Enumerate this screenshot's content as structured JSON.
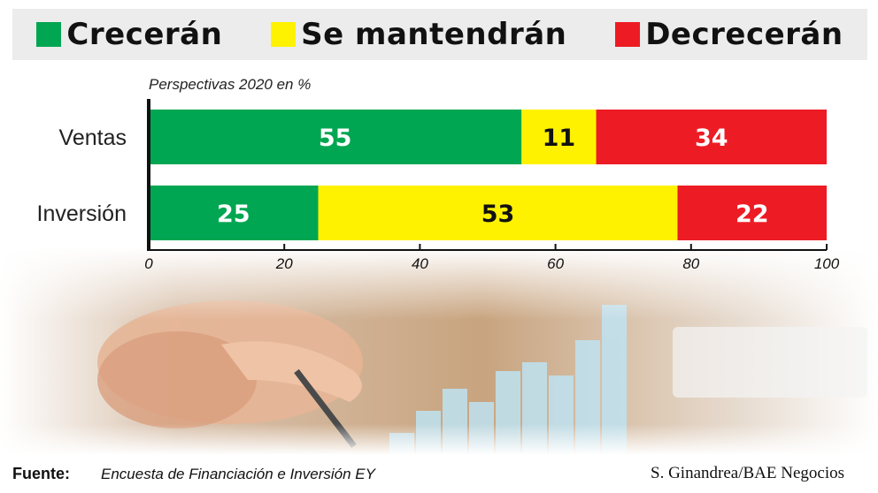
{
  "legend": [
    {
      "label": "Crecerán",
      "color": "#00a651"
    },
    {
      "label": "Se mantendrán",
      "color": "#fff200"
    },
    {
      "label": "Decrecerán",
      "color": "#ed1c24"
    }
  ],
  "subtitle": "Perspectivas 2020 en %",
  "footer": {
    "source_label": "Fuente:",
    "source_text": "Encuesta de Financiación e Inversión EY",
    "credit": "S. Ginandrea/BAE Negocios"
  },
  "chart_data": {
    "type": "bar",
    "orientation": "horizontal",
    "stacked": true,
    "categories": [
      "Ventas",
      "Inversión"
    ],
    "series": [
      {
        "name": "Crecerán",
        "values": [
          55,
          25
        ],
        "color": "#00a651"
      },
      {
        "name": "Se mantendrán",
        "values": [
          11,
          53
        ],
        "color": "#fff200"
      },
      {
        "name": "Decrecerán",
        "values": [
          34,
          22
        ],
        "color": "#ed1c24"
      }
    ],
    "xlim": [
      0,
      100
    ],
    "xticks": [
      0,
      20,
      40,
      60,
      80,
      100
    ],
    "legend_position": "top",
    "grid": false
  }
}
